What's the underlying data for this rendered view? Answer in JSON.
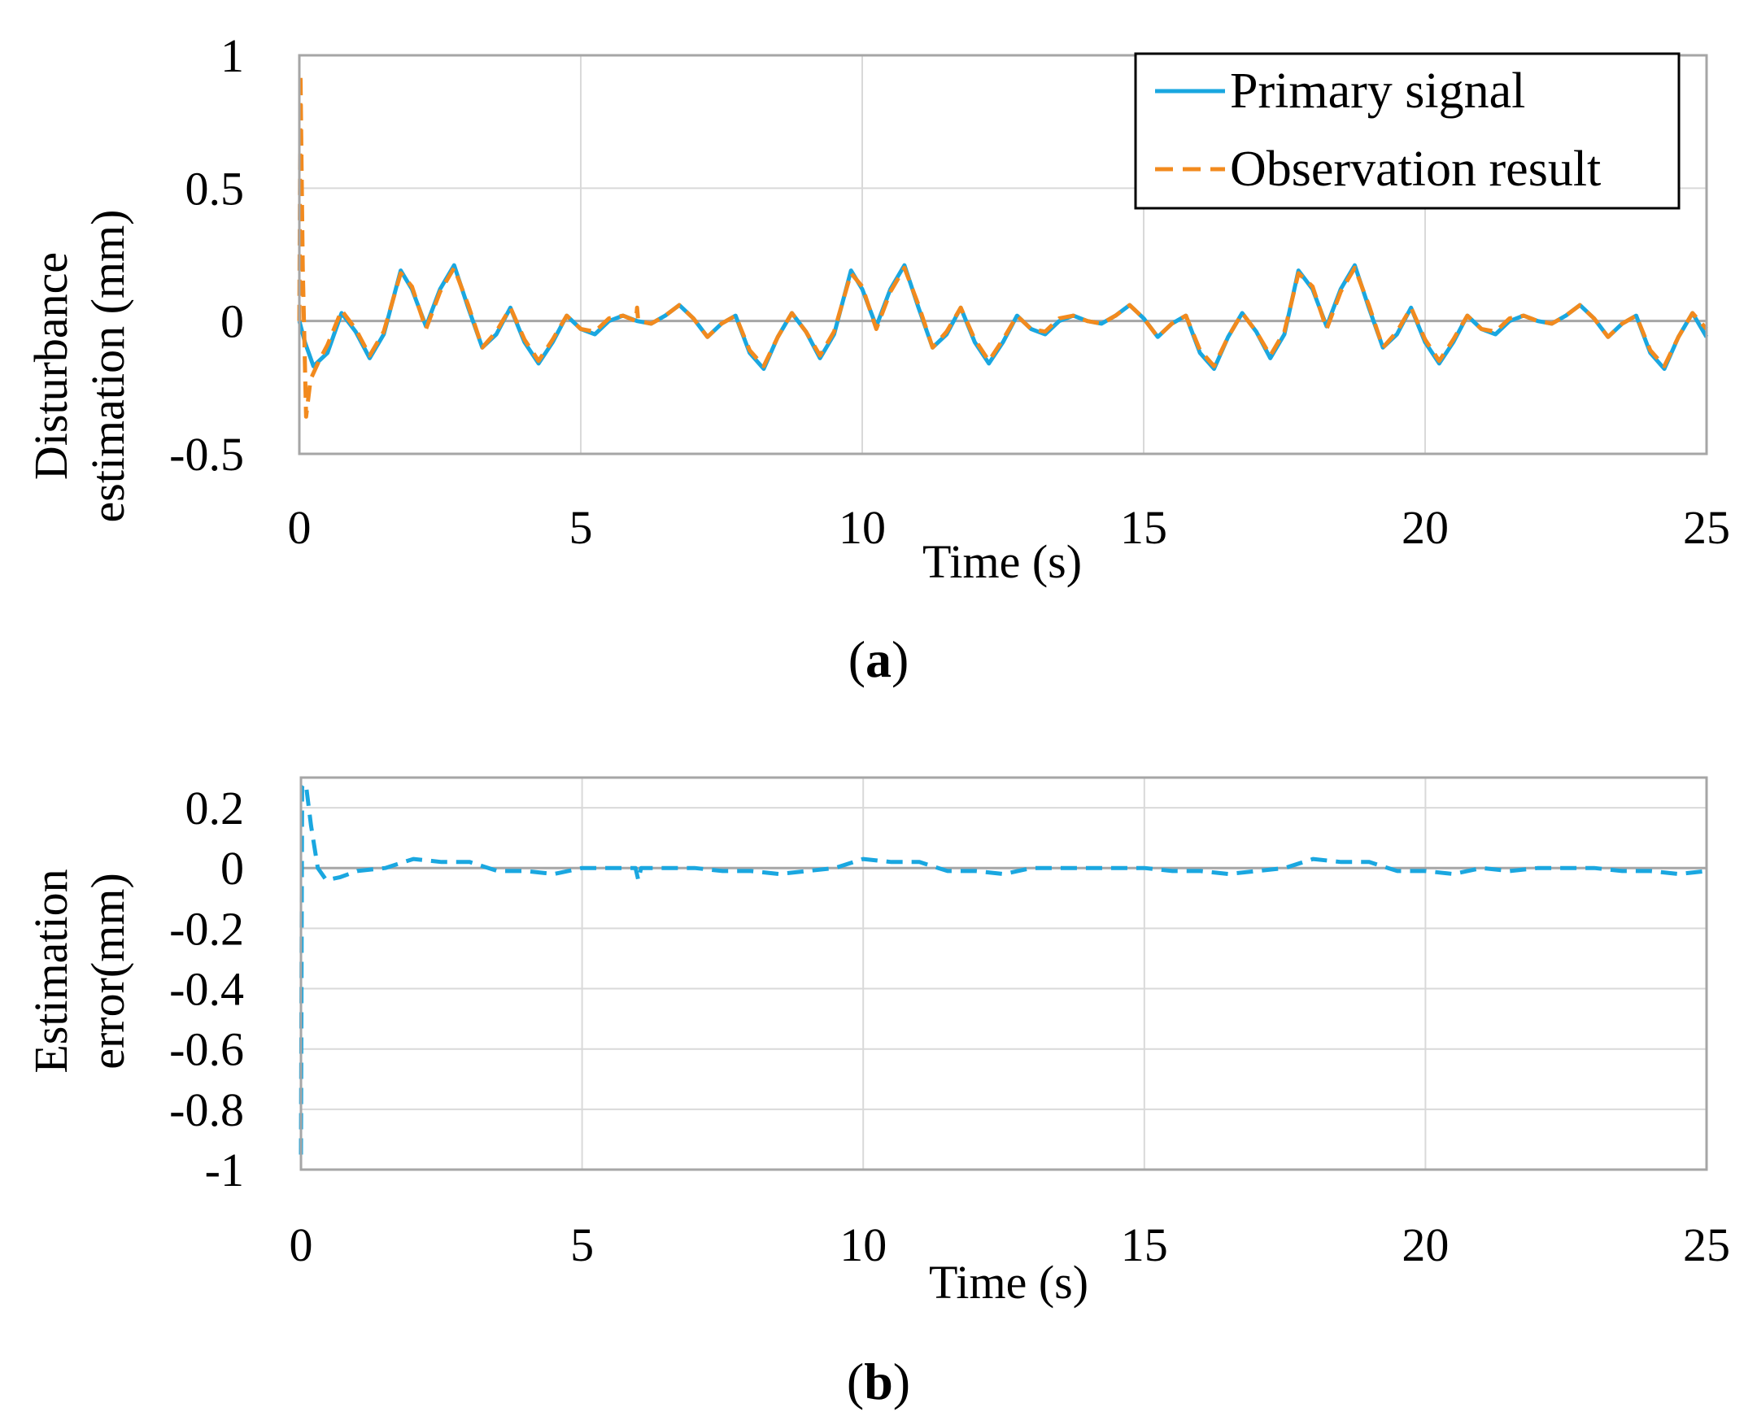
{
  "colors": {
    "primary": "#1aa7e0",
    "observation": "#f28a1e",
    "error": "#1aa7e0",
    "grid": "#d9d9d9",
    "frame": "#a6a6a6",
    "zero": "#a6a6a6"
  },
  "chart_data": [
    {
      "id": "a",
      "type": "line",
      "panel_label": {
        "open": "(",
        "letter": "a",
        "close": ")"
      },
      "xlabel": "Time (s)",
      "ylabel_lines": [
        "Disturbance",
        "estimation (mm)"
      ],
      "xlim": [
        0,
        25
      ],
      "ylim": [
        -0.5,
        1
      ],
      "xticks": [
        0,
        5,
        10,
        15,
        20,
        25
      ],
      "xtick_labels": [
        "0",
        "5",
        "10",
        "15",
        "20",
        "25"
      ],
      "yticks": [
        -0.5,
        0,
        0.5,
        1
      ],
      "ytick_labels": [
        "-0.5",
        "0",
        "0.5",
        "1"
      ],
      "legend": [
        {
          "label": "Primary signal",
          "style": "solid",
          "color_key": "primary"
        },
        {
          "label": "Observation result",
          "style": "dashed",
          "color_key": "observation"
        }
      ],
      "series": [
        {
          "name": "Primary signal",
          "style": "solid",
          "color_key": "primary",
          "x": [
            0,
            0.1,
            0.25,
            0.5,
            0.75,
            1.0,
            1.25,
            1.5,
            1.8,
            2.0,
            2.25,
            2.5,
            2.75,
            3.0,
            3.25,
            3.5,
            3.75,
            4.0,
            4.25,
            4.5,
            4.75,
            5.0,
            5.25,
            5.5,
            5.75,
            6.0,
            6.25,
            6.5,
            6.75,
            7.0,
            7.25,
            7.5,
            7.75,
            8.0,
            8.25,
            8.5,
            8.75,
            9.0,
            9.25,
            9.5,
            9.8,
            10.0,
            10.25,
            10.5,
            10.75,
            11.0,
            11.25,
            11.5,
            11.75,
            12.0,
            12.25,
            12.5,
            12.75,
            13.0,
            13.25,
            13.5,
            13.75,
            14.0,
            14.25,
            14.5,
            14.75,
            15.0,
            15.25,
            15.5,
            15.75,
            16.0,
            16.25,
            16.5,
            16.75,
            17.0,
            17.25,
            17.5,
            17.75,
            18.0,
            18.25,
            18.5,
            18.75,
            19.0,
            19.25,
            19.5,
            19.75,
            20.0,
            20.25,
            20.5,
            20.75,
            21.0,
            21.25,
            21.5,
            21.75,
            22.0,
            22.25,
            22.5,
            22.75,
            23.0,
            23.25,
            23.5,
            23.75,
            24.0,
            24.25,
            24.5,
            24.75,
            25.0
          ],
          "y": [
            0,
            -0.08,
            -0.17,
            -0.12,
            0.03,
            -0.04,
            -0.14,
            -0.05,
            0.19,
            0.12,
            -0.02,
            0.12,
            0.21,
            0.05,
            -0.1,
            -0.05,
            0.05,
            -0.08,
            -0.16,
            -0.08,
            0.02,
            -0.03,
            -0.05,
            0.0,
            0.02,
            0.0,
            -0.01,
            0.02,
            0.06,
            0.01,
            -0.06,
            -0.01,
            0.02,
            -0.12,
            -0.18,
            -0.06,
            0.03,
            -0.04,
            -0.14,
            -0.05,
            0.19,
            0.12,
            -0.02,
            0.12,
            0.21,
            0.05,
            -0.1,
            -0.05,
            0.05,
            -0.08,
            -0.16,
            -0.08,
            0.02,
            -0.03,
            -0.05,
            0.0,
            0.02,
            0.0,
            -0.01,
            0.02,
            0.06,
            0.01,
            -0.06,
            -0.01,
            0.02,
            -0.12,
            -0.18,
            -0.06,
            0.03,
            -0.04,
            -0.14,
            -0.05,
            0.19,
            0.12,
            -0.02,
            0.12,
            0.21,
            0.05,
            -0.1,
            -0.05,
            0.05,
            -0.08,
            -0.16,
            -0.08,
            0.02,
            -0.03,
            -0.05,
            0.0,
            0.02,
            0.0,
            -0.01,
            0.02,
            0.06,
            0.01,
            -0.06,
            -0.01,
            0.02,
            -0.12,
            -0.18,
            -0.06,
            0.03,
            -0.06
          ]
        },
        {
          "name": "Observation result",
          "style": "dashed",
          "color_key": "observation",
          "x": [
            0,
            0.02,
            0.06,
            0.12,
            0.2,
            0.35,
            0.5,
            0.75,
            1.0,
            1.25,
            1.5,
            1.8,
            2.0,
            2.25,
            2.5,
            2.75,
            3.0,
            3.25,
            3.5,
            3.75,
            4.0,
            4.25,
            4.5,
            4.75,
            5.0,
            5.25,
            5.5,
            5.75,
            5.98,
            6.0,
            6.02,
            6.25,
            6.5,
            6.75,
            7.0,
            7.25,
            7.5,
            7.75,
            8.0,
            8.25,
            8.5,
            8.75,
            9.0,
            9.25,
            9.5,
            9.8,
            10.0,
            10.25,
            10.5,
            10.75,
            11.0,
            11.25,
            11.5,
            11.75,
            12.0,
            12.25,
            12.5,
            12.75,
            13.0,
            13.25,
            13.5,
            13.75,
            14.0,
            14.25,
            14.5,
            14.75,
            15.0,
            15.25,
            15.5,
            15.75,
            16.0,
            16.25,
            16.5,
            16.75,
            17.0,
            17.25,
            17.5,
            17.75,
            18.0,
            18.25,
            18.5,
            18.75,
            19.0,
            19.25,
            19.5,
            19.75,
            20.0,
            20.25,
            20.5,
            20.75,
            21.0,
            21.25,
            21.5,
            21.75,
            22.0,
            22.25,
            22.5,
            22.75,
            23.0,
            23.25,
            23.5,
            23.75,
            24.0,
            24.25,
            24.5,
            24.75,
            25.0
          ],
          "y": [
            0,
            0.93,
            0.2,
            -0.36,
            -0.22,
            -0.15,
            -0.09,
            0.04,
            -0.03,
            -0.13,
            -0.04,
            0.18,
            0.13,
            -0.03,
            0.11,
            0.2,
            0.06,
            -0.1,
            -0.04,
            0.05,
            -0.07,
            -0.15,
            -0.07,
            0.02,
            -0.03,
            -0.04,
            0.01,
            0.02,
            0.0,
            0.05,
            0.0,
            -0.01,
            0.02,
            0.06,
            0.01,
            -0.06,
            -0.01,
            0.02,
            -0.11,
            -0.17,
            -0.06,
            0.03,
            -0.04,
            -0.13,
            -0.04,
            0.18,
            0.13,
            -0.03,
            0.11,
            0.2,
            0.06,
            -0.1,
            -0.04,
            0.05,
            -0.07,
            -0.15,
            -0.07,
            0.02,
            -0.03,
            -0.04,
            0.01,
            0.02,
            0.0,
            -0.01,
            0.02,
            0.06,
            0.01,
            -0.06,
            -0.01,
            0.02,
            -0.11,
            -0.17,
            -0.06,
            0.03,
            -0.04,
            -0.13,
            -0.04,
            0.18,
            0.13,
            -0.03,
            0.11,
            0.2,
            0.06,
            -0.1,
            -0.04,
            0.05,
            -0.07,
            -0.15,
            -0.07,
            0.02,
            -0.03,
            -0.04,
            0.01,
            0.02,
            0.0,
            -0.01,
            0.02,
            0.06,
            0.01,
            -0.06,
            -0.01,
            0.02,
            -0.11,
            -0.17,
            -0.06,
            0.03,
            -0.03
          ]
        }
      ]
    },
    {
      "id": "b",
      "type": "line",
      "panel_label": {
        "open": "(",
        "letter": "b",
        "close": ")"
      },
      "xlabel": "Time (s)",
      "ylabel_lines": [
        "Estimation",
        "error(mm)"
      ],
      "xlim": [
        0,
        25
      ],
      "ylim": [
        -1,
        0.3
      ],
      "xticks": [
        0,
        5,
        10,
        15,
        20,
        25
      ],
      "xtick_labels": [
        "0",
        "5",
        "10",
        "15",
        "20",
        "25"
      ],
      "yticks": [
        -1,
        -0.8,
        -0.6,
        -0.4,
        -0.2,
        0,
        0.2
      ],
      "ytick_labels": [
        "-1",
        "-0.8",
        "-0.6",
        "-0.4",
        "-0.2",
        "0",
        "0.2"
      ],
      "grid_yticks": [
        -0.8,
        -0.6,
        -0.4,
        -0.2,
        0,
        0.2
      ],
      "series": [
        {
          "name": "Estimation error",
          "style": "dashed",
          "color_key": "error",
          "x": [
            0,
            0.02,
            0.06,
            0.1,
            0.18,
            0.3,
            0.45,
            0.7,
            1.0,
            1.5,
            2.0,
            2.5,
            3.0,
            3.5,
            4.0,
            4.5,
            5.0,
            5.5,
            5.95,
            6.0,
            6.05,
            6.5,
            7.0,
            7.5,
            8.0,
            8.5,
            9.0,
            9.5,
            10.0,
            10.5,
            11.0,
            11.5,
            12.0,
            12.5,
            13.0,
            13.5,
            14.0,
            14.5,
            15.0,
            15.5,
            16.0,
            16.5,
            17.0,
            17.5,
            18.0,
            18.5,
            19.0,
            19.5,
            20.0,
            20.5,
            21.0,
            21.5,
            22.0,
            22.5,
            23.0,
            23.5,
            24.0,
            24.5,
            25.0
          ],
          "y": [
            -0.95,
            0.27,
            0.28,
            0.26,
            0.14,
            0.0,
            -0.04,
            -0.03,
            -0.01,
            0.0,
            0.03,
            0.02,
            0.02,
            -0.01,
            -0.01,
            -0.02,
            0.0,
            0.0,
            0.0,
            -0.04,
            0.0,
            0.0,
            0.0,
            -0.01,
            -0.01,
            -0.02,
            -0.01,
            0.0,
            0.03,
            0.02,
            0.02,
            -0.01,
            -0.01,
            -0.02,
            0.0,
            0.0,
            0.0,
            0.0,
            0.0,
            -0.01,
            -0.01,
            -0.02,
            -0.01,
            0.0,
            0.03,
            0.02,
            0.02,
            -0.01,
            -0.01,
            -0.02,
            0.0,
            -0.01,
            0.0,
            0.0,
            0.0,
            -0.01,
            -0.01,
            -0.02,
            -0.01
          ]
        }
      ]
    }
  ]
}
